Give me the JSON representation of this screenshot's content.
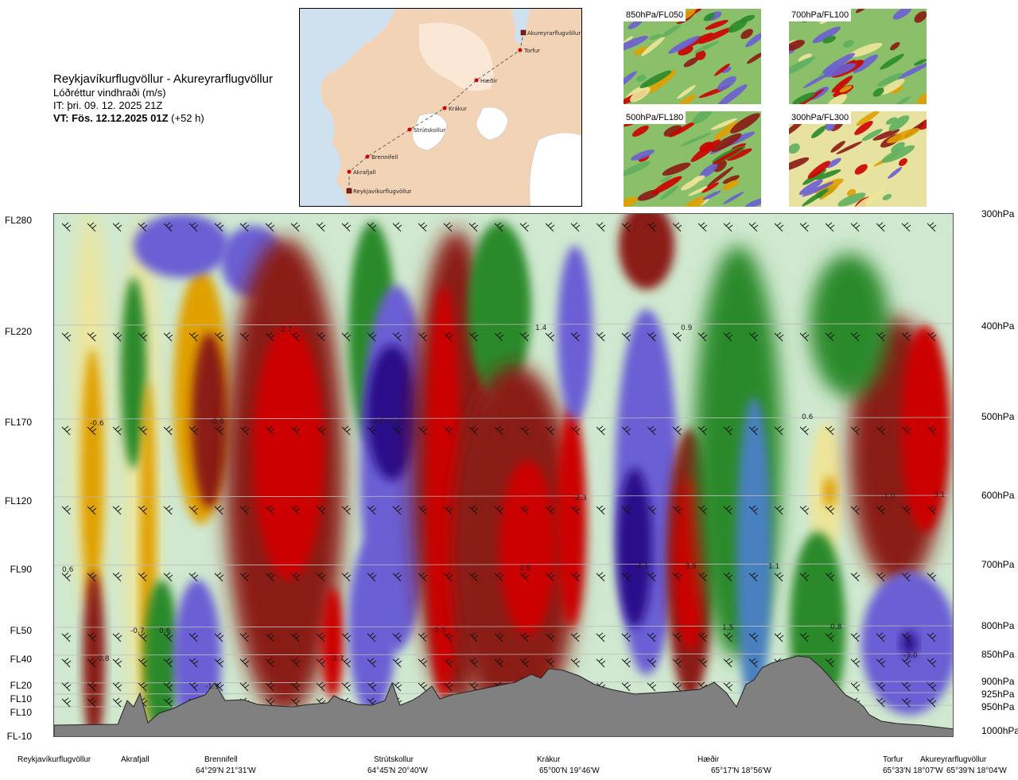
{
  "title": {
    "route": "Reykjavíkurflugvöllur - Akureyrarflugvöllur",
    "variable": "Lóðréttur vindhraði (m/s)",
    "init": "IT: þri. 09. 12. 2025 21Z",
    "valid_bold": "VT: Fös. 12.12.2025 01Z",
    "valid_extra": "(+52 h)"
  },
  "map": {
    "points": [
      {
        "name": "Akureyrarflugvöllur"
      },
      {
        "name": "Torfur"
      },
      {
        "name": "Hæðir"
      },
      {
        "name": "Krákur"
      },
      {
        "name": "Strútskollur"
      },
      {
        "name": "Brennifell"
      },
      {
        "name": "Akrafjall"
      },
      {
        "name": "Reykjavíkurflugvöllur"
      }
    ]
  },
  "thumbnails": [
    {
      "label": "850hPa/FL050"
    },
    {
      "label": "700hPa/FL100"
    },
    {
      "label": "500hPa/FL180"
    },
    {
      "label": "300hPa/FL300"
    }
  ],
  "colors": {
    "strong_down": "#2a0a8a",
    "down": "#6a5ed4",
    "weak_down": "#4a80c0",
    "near_zero": "#cfe8cf",
    "weak_up": "#eee59a",
    "up": "#e0a000",
    "strong_up": "#8a1a14",
    "max_up": "#cc0000",
    "terrain": "#808080"
  },
  "chart_data": {
    "type": "cross-section",
    "left_axis_labels": [
      "FL280",
      "FL220",
      "FL170",
      "FL120",
      "FL90",
      "FL50",
      "FL40",
      "FL20",
      "FL10",
      "FL10",
      "FL-10"
    ],
    "right_axis_labels": [
      "300hPa",
      "400hPa",
      "500hPa",
      "600hPa",
      "700hPa",
      "800hPa",
      "850hPa",
      "900hPa",
      "925hPa",
      "950hPa",
      "1000hPa"
    ],
    "stations": [
      {
        "name": "Reykjavíkurflugvöllur",
        "coord": ""
      },
      {
        "name": "Akrafjall",
        "coord": ""
      },
      {
        "name": "Brennifell",
        "coord": "64°29'N 21°31'W"
      },
      {
        "name": "Strútskollur",
        "coord": "64°45'N 20°40'W"
      },
      {
        "name": "Krákur",
        "coord": "65°00'N 19°46'W"
      },
      {
        "name": "Hæðir",
        "coord": "65°17'N 18°56'W"
      },
      {
        "name": "Torfur",
        "coord": "65°33'N 18°07'W"
      },
      {
        "name": "Akureyrarflugvöllur",
        "coord": "65°39'N 18°04'W"
      }
    ],
    "value_labels": [
      "2.7",
      "1.4",
      "0.9",
      "-0.6",
      "-0.8",
      "-4.5",
      "-4.4",
      "0.6",
      "-2.3",
      "-1.0",
      "3.1",
      "0.6",
      "2.8",
      "-4.1",
      "-3.9",
      "1.1",
      "-0.7",
      "0.6",
      "-5.5",
      "1.5",
      "0.8",
      "-0.8",
      "2.7",
      "-3.0",
      "-1.9"
    ]
  }
}
